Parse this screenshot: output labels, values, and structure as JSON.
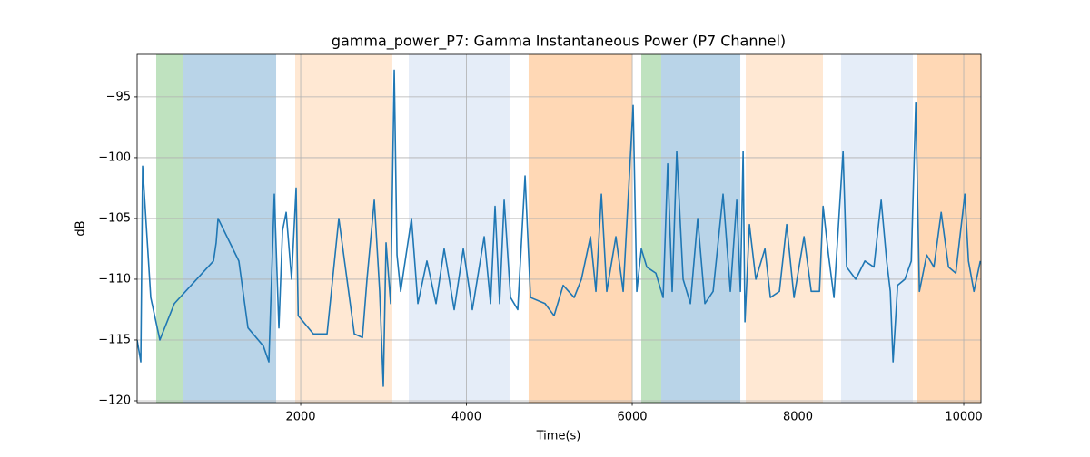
{
  "chart_data": {
    "type": "line",
    "title": "gamma_power_P7: Gamma Instantaneous Power (P7 Channel)",
    "x_label": "Time(s)",
    "y_label": "dB",
    "xlim": [
      27,
      10208
    ],
    "ylim": [
      -120.15,
      -91.5
    ],
    "xticks": [
      2000,
      4000,
      6000,
      8000,
      10000
    ],
    "yticks": [
      {
        "value": -95,
        "label": "−95"
      },
      {
        "value": -100,
        "label": "−100"
      },
      {
        "value": -105,
        "label": "−105"
      },
      {
        "value": -110,
        "label": "−110"
      },
      {
        "value": -115,
        "label": "−115"
      },
      {
        "value": -120,
        "label": "−120"
      }
    ],
    "grid": true,
    "spans": [
      {
        "x": [
          257,
          586
        ],
        "color": "#bfe2bf"
      },
      {
        "x": [
          586,
          1704
        ],
        "color": "#b9d4e8"
      },
      {
        "x": [
          1934,
          3106
        ],
        "color": "#ffe8d3"
      },
      {
        "x": [
          3304,
          4520
        ],
        "color": "#e5edf8"
      },
      {
        "x": [
          4750,
          5999
        ],
        "color": "#ffd8b5"
      },
      {
        "x": [
          6109,
          6350
        ],
        "color": "#bfe2bf"
      },
      {
        "x": [
          6350,
          7304
        ],
        "color": "#b9d4e8"
      },
      {
        "x": [
          7370,
          8301
        ],
        "color": "#ffe8d3"
      },
      {
        "x": [
          8520,
          9386
        ],
        "color": "#e5edf8"
      },
      {
        "x": [
          9430,
          10208
        ],
        "color": "#ffd8b5"
      }
    ],
    "series": [
      {
        "name": "gamma_power_P7",
        "color": "#1f77b4",
        "x": [
          27,
          71,
          93,
          191,
          301,
          476,
          948,
          980,
          1003,
          1254,
          1364,
          1550,
          1616,
          1682,
          1737,
          1781,
          1825,
          1890,
          1945,
          1970,
          2153,
          2318,
          2460,
          2647,
          2745,
          2800,
          2888,
          2953,
          2997,
          3030,
          3085,
          3129,
          3162,
          3206,
          3337,
          3414,
          3523,
          3633,
          3731,
          3852,
          3962,
          4071,
          4214,
          4291,
          4345,
          4400,
          4455,
          4532,
          4619,
          4707,
          4773,
          4948,
          5057,
          5167,
          5299,
          5387,
          5496,
          5562,
          5628,
          5693,
          5803,
          5891,
          6011,
          6055,
          6110,
          6176,
          6285,
          6373,
          6428,
          6482,
          6537,
          6614,
          6702,
          6790,
          6877,
          6976,
          7096,
          7184,
          7261,
          7305,
          7338,
          7360,
          7414,
          7491,
          7601,
          7667,
          7776,
          7864,
          7952,
          8073,
          8160,
          8259,
          8303,
          8368,
          8434,
          8544,
          8587,
          8697,
          8807,
          8916,
          9004,
          9070,
          9114,
          9147,
          9202,
          9290,
          9367,
          9421,
          9465,
          9553,
          9640,
          9728,
          9816,
          9904,
          10013,
          10057,
          10123,
          10200
        ],
        "values": [
          -115,
          -116.8,
          -100.7,
          -111.5,
          -115,
          -112,
          -108.5,
          -107,
          -105,
          -108.5,
          -114,
          -115.5,
          -116.8,
          -103,
          -114,
          -106,
          -104.5,
          -110,
          -102.5,
          -113,
          -114.5,
          -114.5,
          -105,
          -114.5,
          -114.8,
          -110,
          -103.5,
          -111,
          -118.8,
          -107,
          -112,
          -92.8,
          -108,
          -111,
          -105,
          -112,
          -108.5,
          -112,
          -107.5,
          -112.5,
          -107.5,
          -112.5,
          -106.5,
          -112,
          -104,
          -112,
          -103.5,
          -111.5,
          -112.5,
          -101.5,
          -111.5,
          -112,
          -113,
          -110.5,
          -111.5,
          -110,
          -106.5,
          -111,
          -103,
          -111,
          -106.5,
          -111,
          -95.7,
          -111,
          -107.5,
          -109,
          -109.5,
          -111.5,
          -100.5,
          -111,
          -99.5,
          -110,
          -112,
          -105,
          -112,
          -111,
          -103,
          -111,
          -103.5,
          -111,
          -99.5,
          -113.5,
          -105.5,
          -110,
          -107.5,
          -111.5,
          -111,
          -105.5,
          -111.5,
          -106.5,
          -111,
          -111,
          -104,
          -108,
          -111.5,
          -99.5,
          -109,
          -110,
          -108.5,
          -109,
          -103.5,
          -108.5,
          -111,
          -116.8,
          -110.5,
          -110,
          -108.5,
          -95.5,
          -111,
          -108,
          -109,
          -104.5,
          -109,
          -109.5,
          -103,
          -108.5,
          -111,
          -108.5
        ]
      }
    ]
  }
}
